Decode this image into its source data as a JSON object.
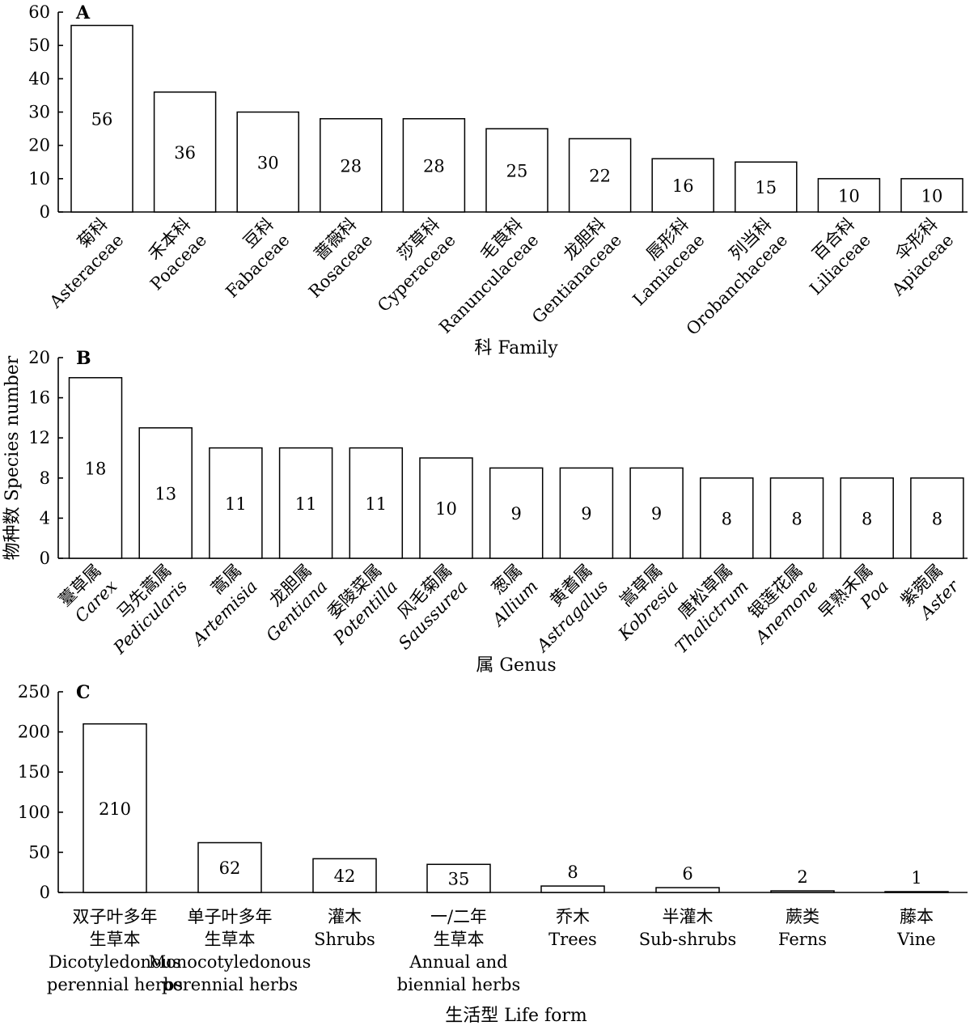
{
  "chart_data": [
    {
      "panel_label": "A",
      "type": "bar",
      "xlabel": "科 Family",
      "ylabel": "",
      "ylim": [
        0,
        60
      ],
      "yticks": [
        0,
        10,
        20,
        30,
        40,
        50,
        60
      ],
      "categories": [
        {
          "cn": "菊科",
          "latin": "Asteraceae",
          "italic": false
        },
        {
          "cn": "禾本科",
          "latin": "Poaceae",
          "italic": false
        },
        {
          "cn": "豆科",
          "latin": "Fabaceae",
          "italic": false
        },
        {
          "cn": "蔷薇科",
          "latin": "Rosaceae",
          "italic": false
        },
        {
          "cn": "莎草科",
          "latin": "Cyperaceae",
          "italic": false
        },
        {
          "cn": "毛茛科",
          "latin": "Ranunculaceae",
          "italic": false
        },
        {
          "cn": "龙胆科",
          "latin": "Gentianaceae",
          "italic": false
        },
        {
          "cn": "唇形科",
          "latin": "Lamiaceae",
          "italic": false
        },
        {
          "cn": "列当科",
          "latin": "Orobanchaceae",
          "italic": false
        },
        {
          "cn": "百合科",
          "latin": "Liliaceae",
          "italic": false
        },
        {
          "cn": "伞形科",
          "latin": "Apiaceae",
          "italic": false
        }
      ],
      "values": [
        56,
        36,
        30,
        28,
        28,
        25,
        22,
        16,
        15,
        10,
        10
      ],
      "grid": false
    },
    {
      "panel_label": "B",
      "type": "bar",
      "xlabel": "属 Genus",
      "ylabel": "物种数 Species number",
      "ylim": [
        0,
        20
      ],
      "yticks": [
        0,
        4,
        8,
        12,
        16,
        20
      ],
      "categories": [
        {
          "cn": "薹草属",
          "latin": "Carex",
          "italic": true
        },
        {
          "cn": "马先蒿属",
          "latin": "Pedicularis",
          "italic": true
        },
        {
          "cn": "蒿属",
          "latin": "Artemisia",
          "italic": true
        },
        {
          "cn": "龙胆属",
          "latin": "Gentiana",
          "italic": true
        },
        {
          "cn": "委陵菜属",
          "latin": "Potentilla",
          "italic": true
        },
        {
          "cn": "风毛菊属",
          "latin": "Saussurea",
          "italic": true
        },
        {
          "cn": "葱属",
          "latin": "Allium",
          "italic": true
        },
        {
          "cn": "黄耆属",
          "latin": "Astragalus",
          "italic": true
        },
        {
          "cn": "嵩草属",
          "latin": "Kobresia",
          "italic": true
        },
        {
          "cn": "唐松草属",
          "latin": "Thalictrum",
          "italic": true
        },
        {
          "cn": "银莲花属",
          "latin": "Anemone",
          "italic": true
        },
        {
          "cn": "早熟禾属",
          "latin": "Poa",
          "italic": true
        },
        {
          "cn": "紫菀属",
          "latin": "Aster",
          "italic": true
        }
      ],
      "values": [
        18,
        13,
        11,
        11,
        11,
        10,
        9,
        9,
        9,
        8,
        8,
        8,
        8
      ],
      "grid": false
    },
    {
      "panel_label": "C",
      "type": "bar",
      "xlabel": "生活型 Life form",
      "ylabel": "",
      "ylim": [
        0,
        250
      ],
      "yticks": [
        0,
        50,
        100,
        150,
        200,
        250
      ],
      "categories": [
        {
          "lines": [
            "双子叶多年",
            "生草本",
            "Dicotyledonous",
            "perennial herbs"
          ]
        },
        {
          "lines": [
            "单子叶多年",
            "生草本",
            "Monocotyledonous",
            "perennial herbs"
          ]
        },
        {
          "lines": [
            "灌木",
            "Shrubs"
          ]
        },
        {
          "lines": [
            "一/二年",
            "生草本",
            "Annual and",
            "biennial herbs"
          ]
        },
        {
          "lines": [
            "乔木",
            "Trees"
          ]
        },
        {
          "lines": [
            "半灌木",
            "Sub-shrubs"
          ]
        },
        {
          "lines": [
            "蕨类",
            "Ferns"
          ]
        },
        {
          "lines": [
            "藤本",
            "Vine"
          ]
        }
      ],
      "values": [
        210,
        62,
        42,
        35,
        8,
        6,
        2,
        1
      ],
      "grid": false
    }
  ]
}
